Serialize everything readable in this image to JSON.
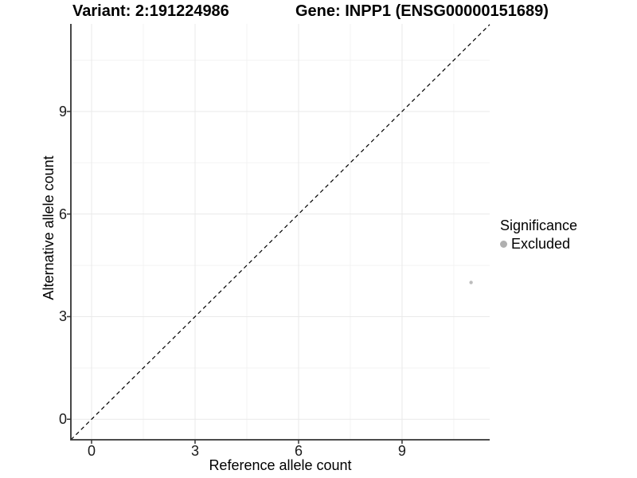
{
  "titles": {
    "left": "Variant: 2:191224986",
    "right": "Gene: INPP1 (ENSG00000151689)"
  },
  "axes": {
    "x_label": "Reference allele count",
    "y_label": "Alternative allele count"
  },
  "legend": {
    "title": "Significance",
    "items": [
      {
        "label": "Excluded",
        "color": "#b0b0b0"
      }
    ]
  },
  "chart_data": {
    "type": "scatter",
    "title": "Variant: 2:191224986 — Gene: INPP1 (ENSG00000151689)",
    "xlabel": "Reference allele count",
    "ylabel": "Alternative allele count",
    "xticks": [
      0,
      3,
      6,
      9
    ],
    "yticks": [
      0,
      3,
      6,
      9
    ],
    "xminor": [
      1.5,
      4.5,
      7.5,
      10.5
    ],
    "yminor": [
      1.5,
      4.5,
      7.5,
      10.5
    ],
    "xlim": [
      -0.6,
      11.54
    ],
    "ylim": [
      -0.6,
      11.56
    ],
    "grid": true,
    "legend_position": "right",
    "identity_line": {
      "style": "dashed",
      "slope": 1,
      "intercept": 0
    },
    "series": [
      {
        "name": "Excluded",
        "color": "#bdbdbd",
        "points": [
          {
            "x": 11,
            "y": 4
          }
        ]
      }
    ],
    "colors": {
      "grid_major": "#e9e9e9",
      "grid_minor": "#f3f3f3",
      "axis": "#333333",
      "dashed_line": "#000000",
      "tick": "#333333"
    }
  }
}
